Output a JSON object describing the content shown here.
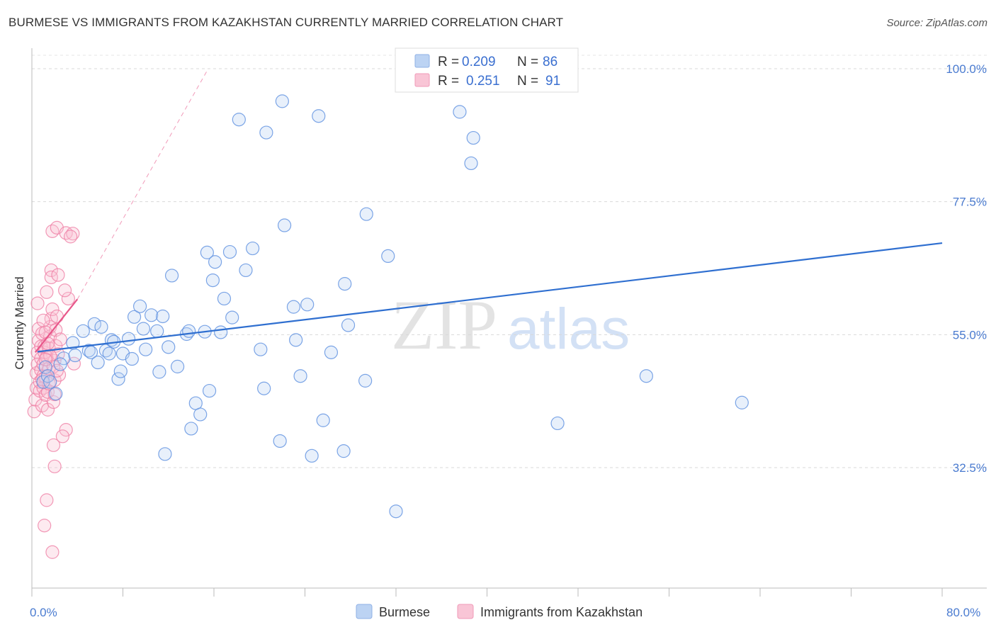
{
  "title": "BURMESE VS IMMIGRANTS FROM KAZAKHSTAN CURRENTLY MARRIED CORRELATION CHART",
  "source": "Source: ZipAtlas.com",
  "watermark": {
    "zip": "ZIP",
    "atlas": "atlas"
  },
  "colors": {
    "blue": "#5b8fe0",
    "blue_line": "#2f6fd0",
    "pink": "#ef7fa5",
    "pink_line": "#e8578a"
  },
  "chart_data": {
    "type": "scatter",
    "xlabel": "",
    "ylabel": "Currently Married",
    "xlim": [
      0,
      80
    ],
    "ylim": [
      10,
      103
    ],
    "x_tick_labels": {
      "min": "0.0%",
      "max": "80.0%"
    },
    "y_ticks": [
      {
        "value": 100,
        "label": "100.0%"
      },
      {
        "value": 77.5,
        "label": "77.5%"
      },
      {
        "value": 55,
        "label": "55.0%"
      },
      {
        "value": 32.5,
        "label": "32.5%"
      }
    ],
    "legend": {
      "r_label": "R =",
      "n_label": "N =",
      "entries": [
        {
          "name": "Burmese",
          "r": "0.209",
          "n": "86"
        },
        {
          "name": "Immigrants from Kazakhstan",
          "r": "0.251",
          "n": "91"
        }
      ]
    },
    "series": [
      {
        "name": "Burmese",
        "trend": {
          "x": [
            0.5,
            80
          ],
          "y": [
            52.1,
            70.5
          ]
        },
        "points": [
          [
            1.0,
            47
          ],
          [
            1.2,
            49.5
          ],
          [
            1.4,
            48
          ],
          [
            1.6,
            47
          ],
          [
            2.1,
            45
          ],
          [
            2.8,
            51
          ],
          [
            2.5,
            50
          ],
          [
            3.6,
            53.6
          ],
          [
            3.8,
            51.5
          ],
          [
            4.5,
            55.6
          ],
          [
            5.0,
            52.3
          ],
          [
            5.2,
            52
          ],
          [
            5.5,
            56.8
          ],
          [
            5.8,
            50.3
          ],
          [
            6.1,
            56.3
          ],
          [
            6.5,
            52.3
          ],
          [
            6.8,
            51.8
          ],
          [
            7.0,
            54.1
          ],
          [
            7.2,
            53.8
          ],
          [
            7.6,
            47.5
          ],
          [
            7.8,
            48.8
          ],
          [
            8.0,
            51.8
          ],
          [
            8.5,
            54.3
          ],
          [
            8.8,
            50.9
          ],
          [
            9.0,
            58
          ],
          [
            9.5,
            59.8
          ],
          [
            9.8,
            56
          ],
          [
            10.0,
            52.5
          ],
          [
            10.5,
            58.3
          ],
          [
            11.0,
            55.6
          ],
          [
            11.2,
            48.7
          ],
          [
            11.5,
            58.1
          ],
          [
            11.7,
            34.8
          ],
          [
            12.0,
            52.9
          ],
          [
            12.3,
            65
          ],
          [
            12.8,
            49.6
          ],
          [
            13.6,
            55.1
          ],
          [
            13.8,
            55.6
          ],
          [
            14.0,
            39.1
          ],
          [
            14.4,
            43.4
          ],
          [
            14.8,
            41.5
          ],
          [
            15.2,
            55.5
          ],
          [
            15.4,
            68.9
          ],
          [
            15.6,
            45.5
          ],
          [
            15.9,
            64.2
          ],
          [
            16.1,
            67.3
          ],
          [
            16.6,
            55.4
          ],
          [
            16.9,
            61.1
          ],
          [
            17.4,
            69
          ],
          [
            17.6,
            57.9
          ],
          [
            18.2,
            91.4
          ],
          [
            18.8,
            65.9
          ],
          [
            19.4,
            69.6
          ],
          [
            20.1,
            52.5
          ],
          [
            20.4,
            45.9
          ],
          [
            20.6,
            89.2
          ],
          [
            21.8,
            37
          ],
          [
            22.0,
            94.5
          ],
          [
            22.2,
            73.5
          ],
          [
            23.0,
            59.7
          ],
          [
            23.2,
            54.1
          ],
          [
            23.6,
            48
          ],
          [
            24.2,
            60.1
          ],
          [
            24.6,
            34.5
          ],
          [
            25.2,
            92
          ],
          [
            25.6,
            40.5
          ],
          [
            26.3,
            52
          ],
          [
            27.4,
            35.3
          ],
          [
            27.5,
            63.6
          ],
          [
            27.8,
            56.6
          ],
          [
            29.3,
            47.2
          ],
          [
            29.4,
            75.4
          ],
          [
            31.3,
            68.3
          ],
          [
            32.0,
            25.1
          ],
          [
            37.6,
            92.7
          ],
          [
            38.6,
            84
          ],
          [
            38.8,
            88.3
          ],
          [
            46.2,
            40
          ],
          [
            54.0,
            48
          ],
          [
            62.4,
            43.5
          ]
        ]
      },
      {
        "name": "Immigrants from Kazakhstan",
        "trend": {
          "x": [
            0.3,
            4.0
          ],
          "y": [
            52.0,
            61.0
          ]
        },
        "trend_extension": {
          "x": [
            4.0,
            15.5
          ],
          "y": [
            61.0,
            100.0
          ]
        },
        "points": [
          [
            0.2,
            42
          ],
          [
            0.3,
            44
          ],
          [
            0.4,
            46
          ],
          [
            0.4,
            48.5
          ],
          [
            0.5,
            50
          ],
          [
            0.5,
            52
          ],
          [
            0.6,
            54
          ],
          [
            0.6,
            56
          ],
          [
            0.5,
            60.3
          ],
          [
            0.7,
            45.5
          ],
          [
            0.7,
            47
          ],
          [
            0.8,
            49
          ],
          [
            0.8,
            51
          ],
          [
            0.8,
            53
          ],
          [
            0.9,
            43
          ],
          [
            0.9,
            55.2
          ],
          [
            1.0,
            46
          ],
          [
            1.0,
            48
          ],
          [
            1.0,
            50
          ],
          [
            1.1,
            52
          ],
          [
            1.1,
            53
          ],
          [
            1.2,
            44.8
          ],
          [
            1.2,
            47.8
          ],
          [
            1.3,
            51.2
          ],
          [
            1.3,
            62.2
          ],
          [
            1.4,
            42.3
          ],
          [
            1.4,
            45.3
          ],
          [
            1.5,
            46.7
          ],
          [
            1.5,
            49.3
          ],
          [
            1.5,
            52.7
          ],
          [
            1.6,
            54.7
          ],
          [
            1.6,
            56.3
          ],
          [
            1.7,
            57.7
          ],
          [
            1.7,
            65.9
          ],
          [
            1.7,
            64.7
          ],
          [
            1.8,
            59.3
          ],
          [
            1.8,
            72.5
          ],
          [
            1.9,
            36.3
          ],
          [
            1.9,
            43.6
          ],
          [
            2.0,
            47.3
          ],
          [
            2.0,
            50.6
          ],
          [
            2.1,
            53.1
          ],
          [
            2.1,
            55.8
          ],
          [
            2.2,
            58.1
          ],
          [
            2.2,
            73.1
          ],
          [
            2.3,
            51.7
          ],
          [
            2.4,
            48.2
          ],
          [
            1.3,
            27
          ],
          [
            1.1,
            22.7
          ],
          [
            1.8,
            18.2
          ],
          [
            2.0,
            32.7
          ],
          [
            2.3,
            65.1
          ],
          [
            3.0,
            72.2
          ],
          [
            3.2,
            61.1
          ],
          [
            3.0,
            38.9
          ],
          [
            2.7,
            37.8
          ],
          [
            2.9,
            62.5
          ],
          [
            3.6,
            72.1
          ],
          [
            3.4,
            71.6
          ],
          [
            1.0,
            57.4
          ],
          [
            1.2,
            55.4
          ],
          [
            1.6,
            51.4
          ],
          [
            1.9,
            49.6
          ],
          [
            2.2,
            48.9
          ],
          [
            2.5,
            54.2
          ],
          [
            3.7,
            50.1
          ],
          [
            1.4,
            53.5
          ],
          [
            2.0,
            44.9
          ],
          [
            0.9,
            47.4
          ],
          [
            1.2,
            50.8
          ]
        ]
      }
    ]
  }
}
